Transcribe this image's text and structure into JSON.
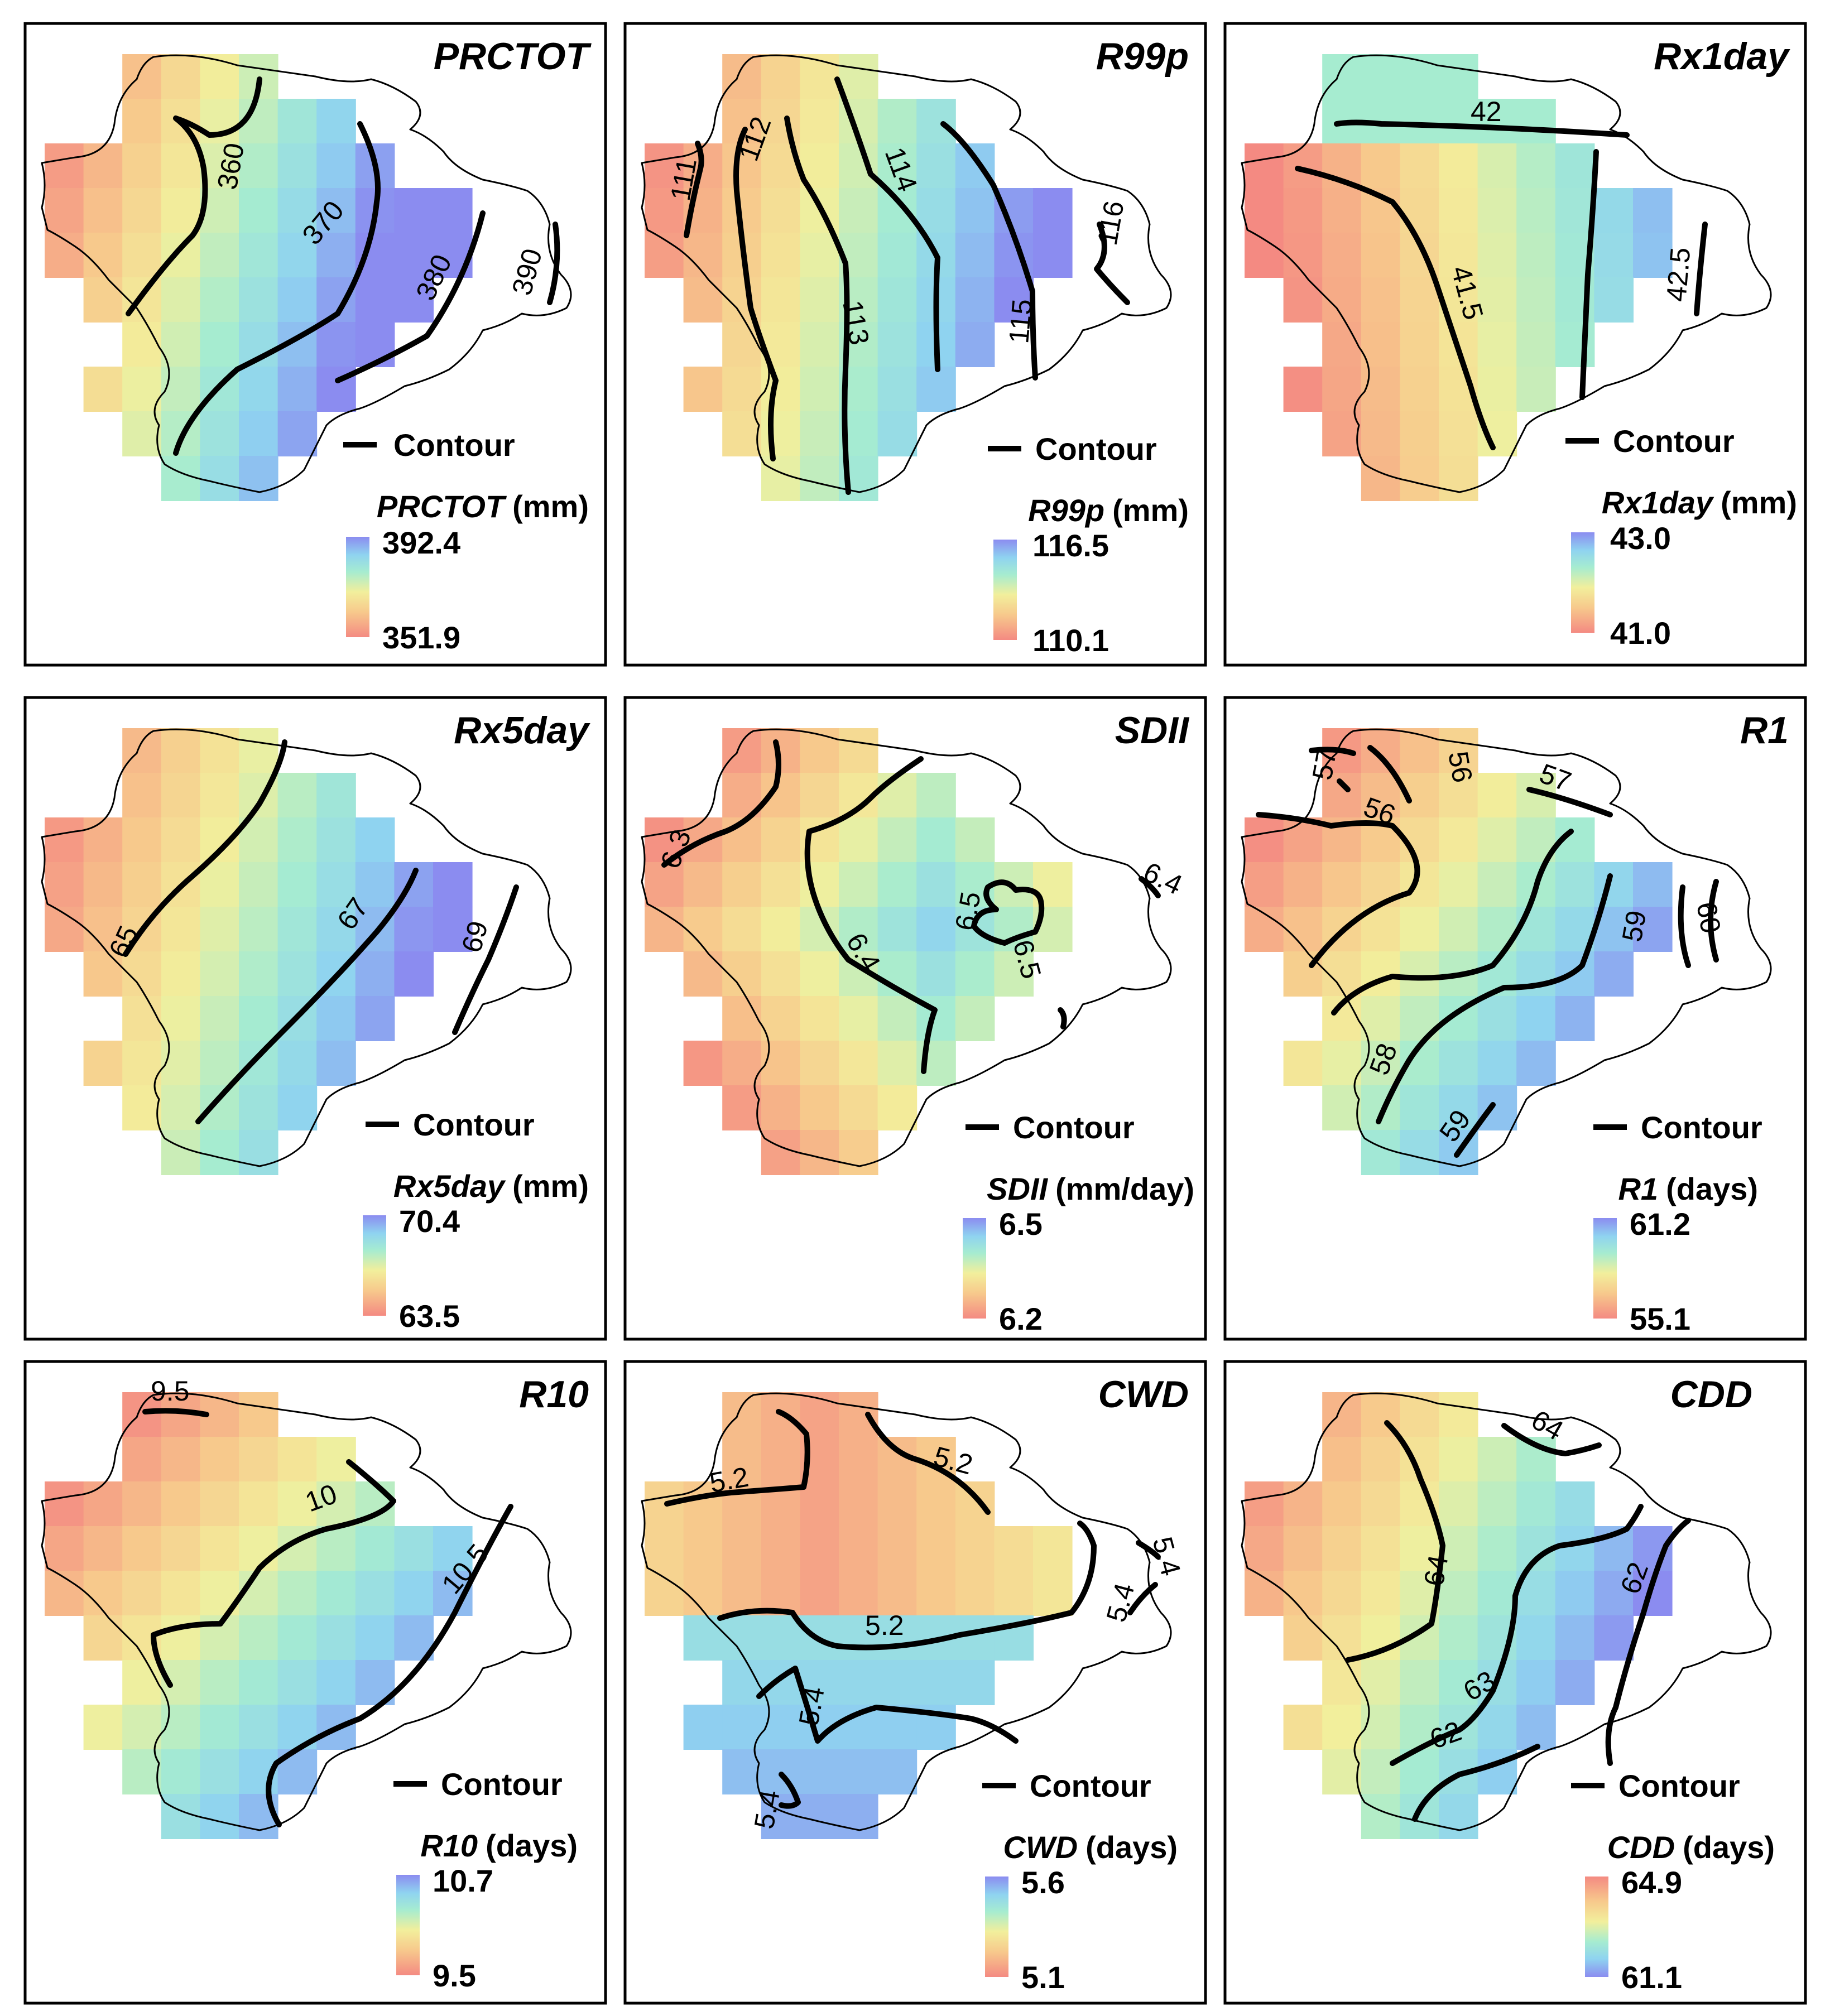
{
  "legend_common": {
    "contour_label": "Contour"
  },
  "panels": [
    {
      "id": "prctot",
      "title": "PRCTOT",
      "unit": "(mm)",
      "max": "392.4",
      "min": "351.9",
      "ramp": "warm-low",
      "contour_labels": [
        "360",
        "370",
        "380",
        "390"
      ]
    },
    {
      "id": "r99p",
      "title": "R99p",
      "unit": "(mm)",
      "max": "116.5",
      "min": "110.1",
      "ramp": "warm-low",
      "contour_labels": [
        "111",
        "112",
        "113",
        "114",
        "115",
        "116"
      ]
    },
    {
      "id": "rx1day",
      "title": "Rx1day",
      "unit": "(mm)",
      "max": "43.0",
      "min": "41.0",
      "ramp": "warm-low",
      "contour_labels": [
        "42",
        "41.5",
        "42.5"
      ]
    },
    {
      "id": "rx5day",
      "title": "Rx5day",
      "unit": "(mm)",
      "max": "70.4",
      "min": "63.5",
      "ramp": "warm-low",
      "contour_labels": [
        "65",
        "67",
        "69"
      ]
    },
    {
      "id": "sdii",
      "title": "SDII",
      "unit": "(mm/day)",
      "max": "6.5",
      "min": "6.2",
      "ramp": "warm-low",
      "contour_labels": [
        "6.3",
        "6.4",
        "6.4",
        "6.5",
        "6.5"
      ]
    },
    {
      "id": "r1",
      "title": "R1",
      "unit": "(days)",
      "max": "61.2",
      "min": "55.1",
      "ramp": "warm-low",
      "contour_labels": [
        "57",
        "56",
        "57",
        "56",
        "59",
        "60",
        "58",
        "59"
      ]
    },
    {
      "id": "r10",
      "title": "R10",
      "unit": "(days)",
      "max": "10.7",
      "min": "9.5",
      "ramp": "warm-low",
      "contour_labels": [
        "9.5",
        "10",
        "10.5"
      ]
    },
    {
      "id": "cwd",
      "title": "CWD",
      "unit": "(days)",
      "max": "5.6",
      "min": "5.1",
      "ramp": "warm-low",
      "contour_labels": [
        "5.2",
        "5.2",
        "5.2",
        "5.4",
        "5.4",
        "5.4",
        "5.4"
      ]
    },
    {
      "id": "cdd",
      "title": "CDD",
      "unit": "(days)",
      "max": "64.9",
      "min": "61.1",
      "ramp": "warm-high",
      "contour_labels": [
        "64",
        "64",
        "63",
        "62",
        "62"
      ]
    }
  ]
}
